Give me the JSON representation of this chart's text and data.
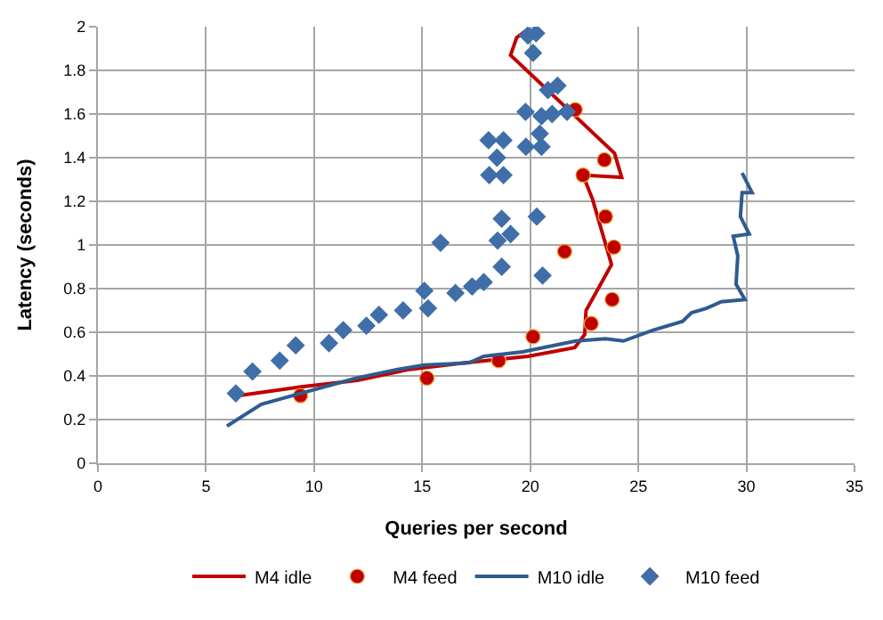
{
  "chart_data": {
    "type": "scatter",
    "xlabel": "Queries per second",
    "ylabel": "Latency (seconds)",
    "xlim": [
      0,
      35
    ],
    "xticks": [
      0,
      5,
      10,
      15,
      20,
      25,
      30,
      35
    ],
    "ylim": [
      0,
      2
    ],
    "yticks": [
      0,
      0.2,
      0.4,
      0.6,
      0.8,
      1,
      1.2,
      1.4,
      1.6,
      1.8,
      2
    ],
    "grid": true,
    "legend": "bottom",
    "series": [
      {
        "name": "M4 idle",
        "type": "line",
        "color": "#c00000",
        "marker": "none",
        "x": [
          6.54,
          9.4,
          12,
          14.42,
          17,
          19.9,
          22.06,
          22.52,
          22.58,
          23.76,
          22.88,
          22.44,
          24.23,
          23.9,
          19.09,
          19.37,
          19.92
        ],
        "values": [
          0.31,
          0.35,
          0.38,
          0.43,
          0.46,
          0.49,
          0.53,
          0.59,
          0.7,
          0.91,
          1.21,
          1.32,
          1.31,
          1.42,
          1.87,
          1.95,
          1.99
        ]
      },
      {
        "name": "M4 feed",
        "color": "#c00000",
        "marker": "circle",
        "x": [
          9.37,
          15.22,
          18.54,
          20.13,
          22.82,
          23.79,
          21.59,
          23.87,
          23.48,
          22.44,
          23.43,
          22.08
        ],
        "values": [
          0.31,
          0.39,
          0.47,
          0.58,
          0.64,
          0.75,
          0.97,
          0.99,
          1.13,
          1.32,
          1.39,
          1.62
        ]
      },
      {
        "name": "M10 idle",
        "type": "line",
        "color": "#2f5b8f",
        "marker": "none",
        "x": [
          5.97,
          7.56,
          9.37,
          11.95,
          13.87,
          15.1,
          17.17,
          17.85,
          19.64,
          22.11,
          23.48,
          24.31,
          25.68,
          27.05,
          27.46,
          28.15,
          28.84,
          29.93,
          29.52,
          29.6,
          29.39,
          30.13,
          29.72,
          29.8,
          30.26,
          29.8
        ],
        "values": [
          0.17,
          0.27,
          0.32,
          0.39,
          0.43,
          0.45,
          0.46,
          0.49,
          0.51,
          0.56,
          0.57,
          0.56,
          0.61,
          0.65,
          0.69,
          0.71,
          0.74,
          0.75,
          0.82,
          0.95,
          1.04,
          1.05,
          1.13,
          1.24,
          1.24,
          1.33
        ]
      },
      {
        "name": "M10 feed",
        "color": "#3f6ea8",
        "marker": "diamond",
        "x": [
          6.38,
          7.15,
          8.41,
          9.15,
          10.69,
          11.35,
          12.42,
          13.0,
          14.12,
          15.1,
          15.27,
          15.85,
          16.54,
          17.31,
          17.85,
          18.68,
          18.49,
          19.09,
          18.68,
          20.3,
          20.57,
          18.1,
          18.76,
          18.46,
          18.07,
          18.76,
          19.8,
          20.52,
          20.44,
          19.78,
          20.52,
          21.01,
          21.7,
          20.82,
          21.26,
          20.13,
          19.89,
          20.27
        ],
        "values": [
          0.32,
          0.42,
          0.47,
          0.54,
          0.55,
          0.61,
          0.63,
          0.68,
          0.7,
          0.79,
          0.71,
          1.01,
          0.78,
          0.81,
          0.83,
          0.9,
          1.02,
          1.05,
          1.12,
          1.13,
          0.86,
          1.32,
          1.32,
          1.4,
          1.48,
          1.48,
          1.45,
          1.45,
          1.51,
          1.61,
          1.59,
          1.6,
          1.61,
          1.71,
          1.73,
          1.88,
          1.96,
          1.97
        ]
      }
    ]
  }
}
